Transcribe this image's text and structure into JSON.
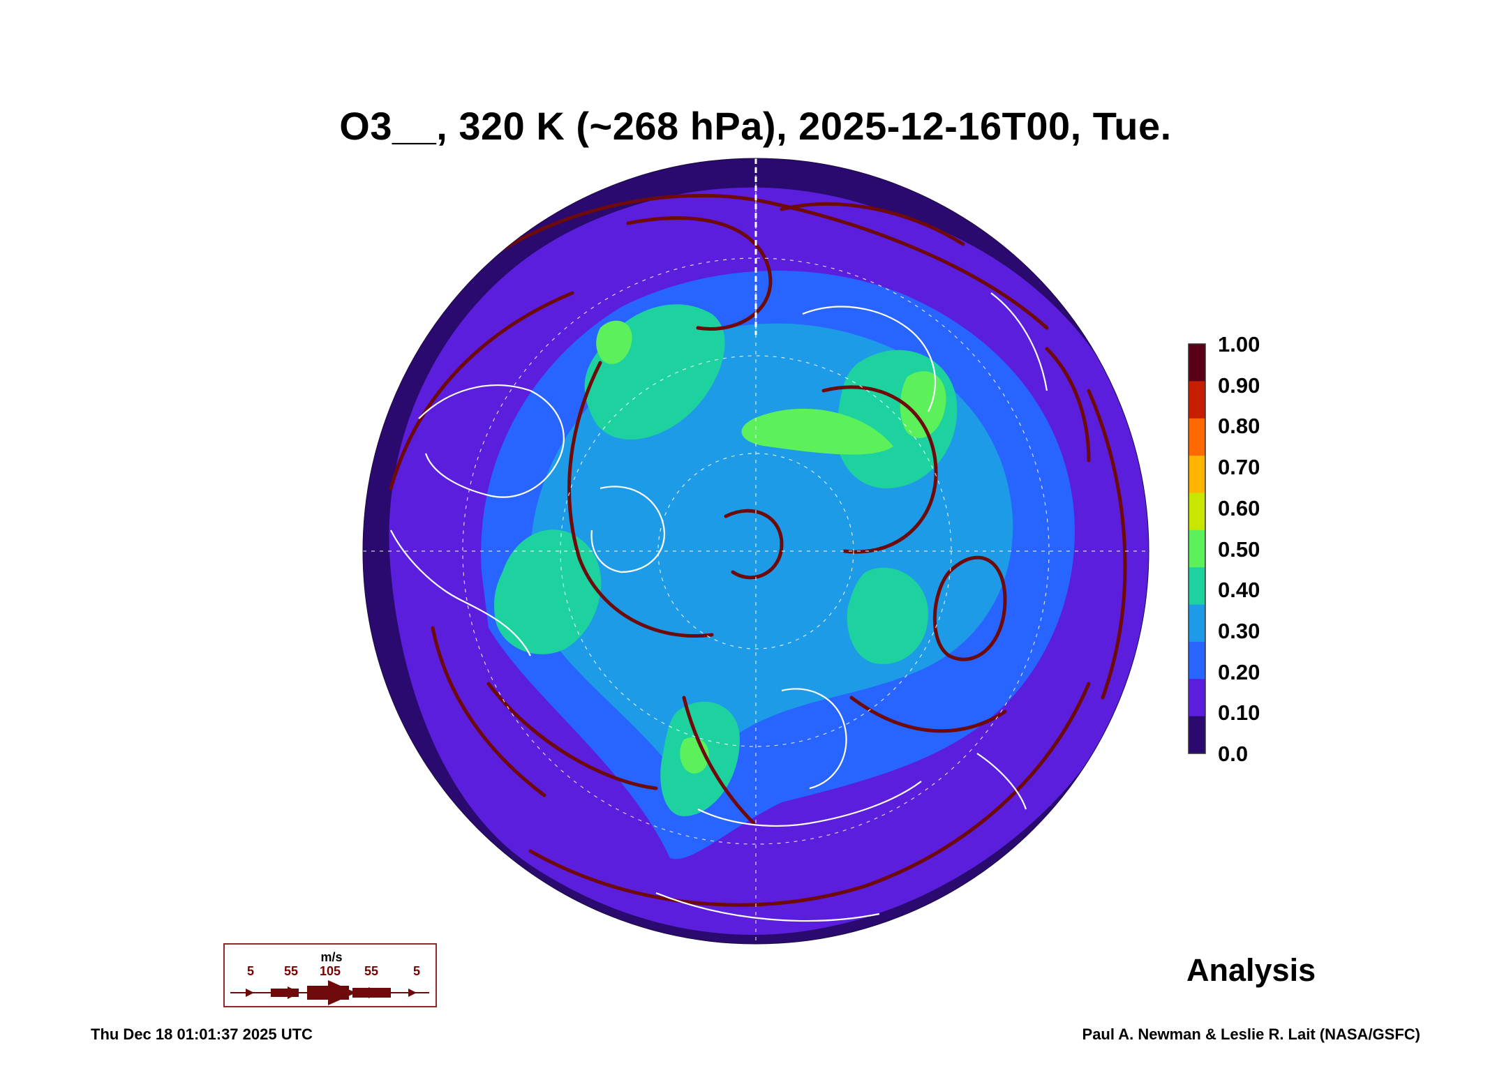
{
  "title": "O3__, 320 K (~268 hPa), 2025-12-16T00, Tue.",
  "colorbar": {
    "labels": [
      "1.00",
      "0.90",
      "0.80",
      "0.70",
      "0.60",
      "0.50",
      "0.40",
      "0.30",
      "0.20",
      "0.10",
      "0.0"
    ],
    "colors": [
      "#5a0016",
      "#c81e00",
      "#ff6a00",
      "#ffb400",
      "#c8e600",
      "#5cf05a",
      "#1ed2a0",
      "#1e9be6",
      "#2864ff",
      "#5a1edc",
      "#2a0a6e"
    ]
  },
  "map": {
    "projection": "north polar stereographic",
    "colors": {
      "background": "#2a0a6e",
      "low": "#5a1edc",
      "mid": "#2864ff",
      "moderate": "#1e9be6",
      "high": "#1ed2a0",
      "peak": "#5cf05a",
      "streamlines": "#6e0a0a",
      "coastlines": "#ffffff"
    }
  },
  "wind_legend": {
    "unit": "m/s",
    "values": [
      "5",
      "55",
      "105",
      "55",
      "5"
    ]
  },
  "analysis_label": "Analysis",
  "timestamp": "Thu Dec 18 01:01:37 2025 UTC",
  "credit": "Paul A. Newman & Leslie R. Lait (NASA/GSFC)"
}
